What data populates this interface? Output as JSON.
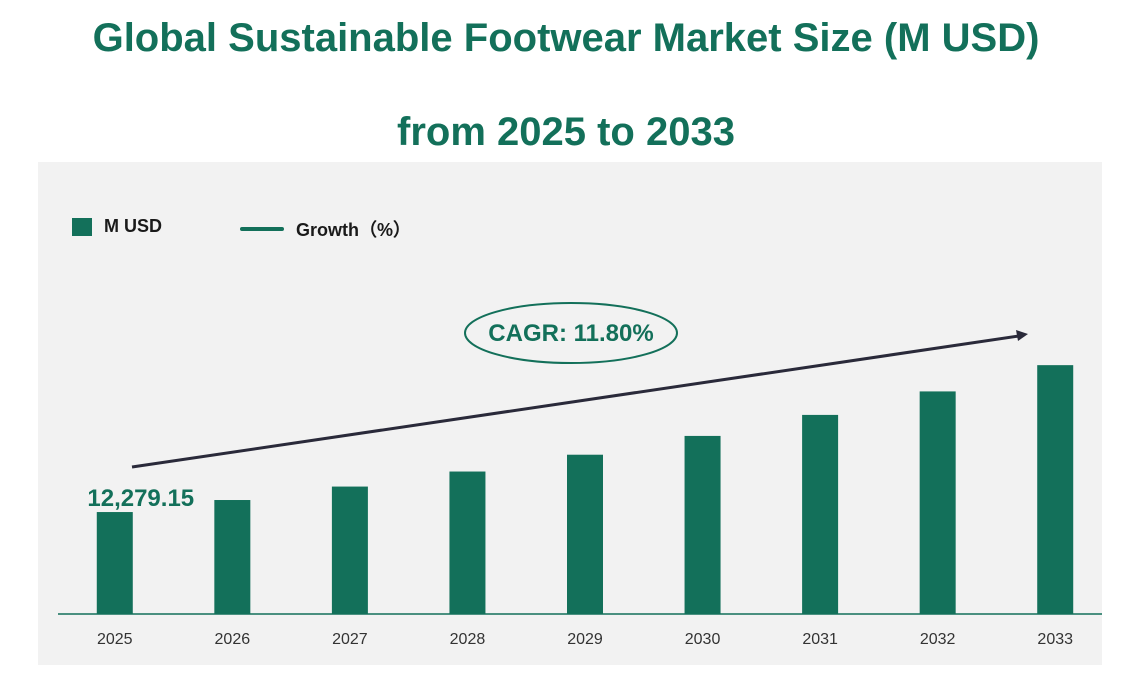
{
  "header": {
    "title_line1": "Global Sustainable Footwear Market Size (M USD)",
    "title_line2": "from 2025 to 2033"
  },
  "legend": {
    "bar_label": "M USD",
    "line_label": "Growth（%）"
  },
  "annotation": {
    "cagr": "CAGR: 11.80%"
  },
  "colors": {
    "accent": "#13705a",
    "panel": "#f2f2f2",
    "arrow": "#2a2a3a"
  },
  "chart_data": {
    "type": "bar",
    "title": "Global Sustainable Footwear Market Size (M USD) from 2025 to 2033",
    "categories": [
      "2025",
      "2026",
      "2027",
      "2028",
      "2029",
      "2030",
      "2031",
      "2032",
      "2033"
    ],
    "series": [
      {
        "name": "M USD",
        "values": [
          12279.15,
          13728.09,
          15348.01,
          17159.08,
          19183.85,
          21447.55,
          23978.36,
          26807.81,
          29971.13
        ]
      }
    ],
    "data_labels": [
      {
        "category": "2025",
        "text": "12,279.15"
      }
    ],
    "ylim": [
      0,
      33000
    ],
    "grid": false,
    "legend_position": "top-left"
  }
}
